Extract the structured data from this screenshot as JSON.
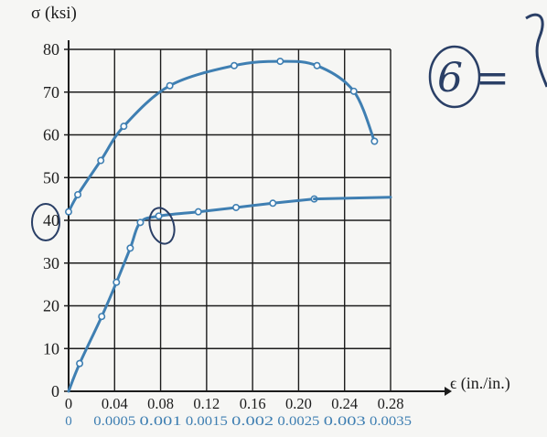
{
  "chart_data": {
    "type": "line",
    "ylabel": "σ (ksi)",
    "xlabel": "ϵ (in./in.)",
    "ylim": [
      0,
      80
    ],
    "x_top": {
      "range": [
        0,
        0.28
      ],
      "ticks": [
        "0",
        "0.04",
        "0.08",
        "0.12",
        "0.16",
        "0.20",
        "0.24",
        "0.28"
      ]
    },
    "x_bottom": {
      "range": [
        0,
        0.0035
      ],
      "ticks": [
        "0",
        "0.0005",
        "0.001",
        "0.0015",
        "0.002",
        "0.0025",
        "0.003",
        "0.0035"
      ]
    },
    "y_ticks": [
      "0",
      "10",
      "20",
      "30",
      "40",
      "50",
      "60",
      "70",
      "80"
    ],
    "grid": true,
    "series": [
      {
        "axis": "top",
        "points": [
          [
            0,
            42
          ],
          [
            0.008,
            46
          ],
          [
            0.028,
            54
          ],
          [
            0.048,
            62
          ],
          [
            0.088,
            71.5
          ],
          [
            0.144,
            76.2
          ],
          [
            0.184,
            77.2
          ],
          [
            0.216,
            76.2
          ],
          [
            0.248,
            70.2
          ],
          [
            0.266,
            58.5
          ]
        ]
      },
      {
        "axis": "bottom",
        "points": [
          [
            0,
            0
          ],
          [
            0.00012,
            6.5
          ],
          [
            0.00036,
            17.5
          ],
          [
            0.00052,
            25.5
          ],
          [
            0.00067,
            33.5
          ],
          [
            0.00078,
            39.5
          ],
          [
            0.00098,
            41
          ],
          [
            0.00141,
            42
          ],
          [
            0.00182,
            43
          ],
          [
            0.00222,
            44
          ],
          [
            0.00267,
            45
          ]
        ]
      },
      {
        "axis": "top",
        "points": [
          [
            0.28,
            45.4
          ]
        ]
      }
    ]
  },
  "annotations": {
    "handwriting": "6 =",
    "circle_tick": "40"
  },
  "colors": {
    "axis": "#1c1c1c",
    "grid": "#1c1c1c",
    "curve": "#3f7fb2",
    "secondary_axis_text": "#3f7fb2",
    "ink": "#2a3f66"
  }
}
